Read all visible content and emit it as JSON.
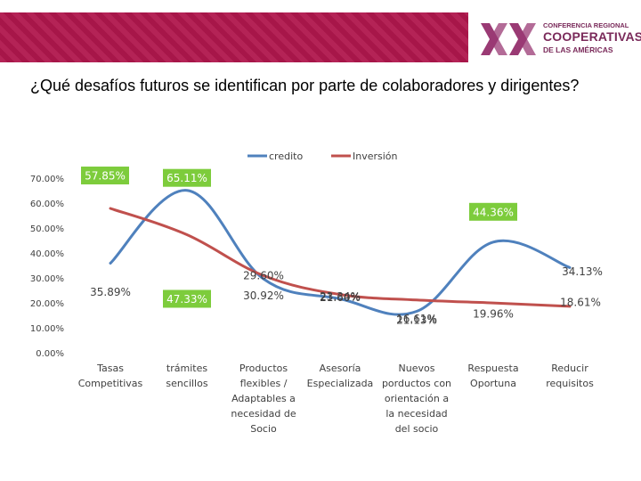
{
  "header": {
    "logo": {
      "line1": "CONFERENCIA REGIONAL",
      "line2": "COOPERATIVAS",
      "line3": "DE LAS AMÉRICAS"
    }
  },
  "question": "¿Qué desafíos futuros se identifican por parte de colaboradores y dirigentes?",
  "colors": {
    "banner": "#b0174d",
    "credito": "#4f81bd",
    "inversion": "#c0504d",
    "label_bg": "#7dcc3c"
  },
  "chart_data": {
    "type": "line",
    "smooth": true,
    "categories": [
      "Tasas Competitivas",
      "trámites sencillos",
      "Productos flexibles / Adaptables a necesidad de Socio",
      "Asesoría Especializada",
      "Nuevos porductos con orientación a la necesidad del socio",
      "Respuesta Oportuna",
      "Reducir requisitos"
    ],
    "category_lines": [
      [
        "Tasas",
        "Competitivas"
      ],
      [
        "trámites",
        "sencillos"
      ],
      [
        "Productos",
        "flexibles /",
        "Adaptables a",
        "necesidad de",
        "Socio"
      ],
      [
        "Asesoría",
        "Especializada"
      ],
      [
        "Nuevos",
        "porductos con",
        "orientación a",
        "la necesidad",
        "del socio"
      ],
      [
        "Respuesta",
        "Oportuna"
      ],
      [
        "Reducir",
        "requisitos"
      ]
    ],
    "series": [
      {
        "name": "credito",
        "color": "#4f81bd",
        "values": [
          35.89,
          65.11,
          29.6,
          21.6,
          16.61,
          44.36,
          34.13
        ],
        "labels": [
          "35.89%",
          "65.11%",
          "29.60%",
          "21.60%",
          "16.61%",
          "44.36%",
          "34.13%"
        ]
      },
      {
        "name": "Inversión",
        "color": "#c0504d",
        "values": [
          57.85,
          47.33,
          30.92,
          23.34,
          21.13,
          19.96,
          18.61
        ],
        "labels": [
          "57.85%",
          "47.33%",
          "30.92%",
          "23.34%",
          "21.13%",
          "19.96%",
          "18.61%"
        ]
      }
    ],
    "ylim": [
      0,
      70
    ],
    "yticks": [
      "0.00%",
      "10.00%",
      "20.00%",
      "30.00%",
      "40.00%",
      "50.00%",
      "60.00%",
      "70.00%"
    ],
    "legend_position": "top",
    "grid": false
  }
}
